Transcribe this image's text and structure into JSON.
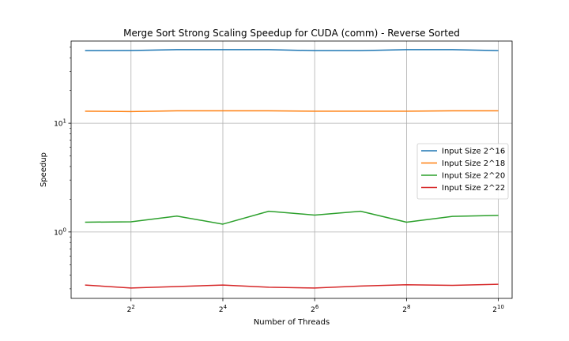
{
  "chart_data": {
    "type": "line",
    "title": "Merge Sort Strong Scaling Speedup for CUDA (comm) - Reverse Sorted",
    "xlabel": "Number of Threads",
    "ylabel": "Speedup",
    "x_scale": "log2",
    "y_scale": "log10",
    "x": [
      2,
      4,
      8,
      16,
      32,
      64,
      128,
      256,
      512,
      1024
    ],
    "x_ticks": [
      {
        "value": 4,
        "base": "2",
        "exp": "2"
      },
      {
        "value": 16,
        "base": "2",
        "exp": "4"
      },
      {
        "value": 64,
        "base": "2",
        "exp": "6"
      },
      {
        "value": 256,
        "base": "2",
        "exp": "8"
      },
      {
        "value": 1024,
        "base": "2",
        "exp": "10"
      }
    ],
    "y_ticks": [
      {
        "value": 1,
        "base": "10",
        "exp": "0"
      },
      {
        "value": 10,
        "base": "10",
        "exp": "1"
      }
    ],
    "xlim": [
      1.62,
      1260
    ],
    "ylim": [
      0.245,
      57
    ],
    "grid": true,
    "legend_position": "center-right",
    "series": [
      {
        "name": "Input Size 2^16",
        "color": "#1f77b4",
        "values": [
          46.5,
          46.6,
          47.5,
          47.5,
          47.5,
          46.5,
          46.5,
          47.5,
          47.5,
          46.5
        ]
      },
      {
        "name": "Input Size 2^18",
        "color": "#ff7f0e",
        "values": [
          12.9,
          12.8,
          13.0,
          13.0,
          13.0,
          12.9,
          12.9,
          12.9,
          13.0,
          13.0
        ]
      },
      {
        "name": "Input Size 2^20",
        "color": "#2ca02c",
        "values": [
          1.23,
          1.24,
          1.4,
          1.18,
          1.55,
          1.43,
          1.55,
          1.23,
          1.39,
          1.42
        ]
      },
      {
        "name": "Input Size 2^22",
        "color": "#d62728",
        "values": [
          0.325,
          0.305,
          0.315,
          0.325,
          0.31,
          0.305,
          0.318,
          0.327,
          0.323,
          0.33
        ]
      }
    ]
  }
}
